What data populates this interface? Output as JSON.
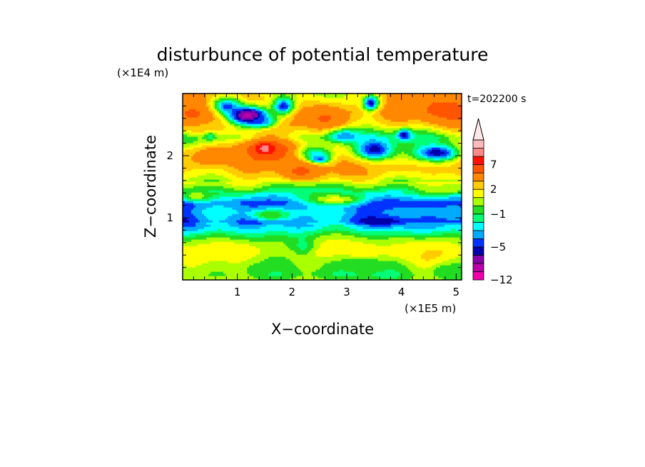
{
  "chart_data": {
    "type": "heatmap",
    "title": "disturbunce of potential temperature",
    "time_label": "t=202200 s",
    "xlabel": "X−coordinate",
    "ylabel": "Z−coordinate",
    "x_unit": "(×1E5 m)",
    "y_unit": "(×1E4 m)",
    "xlim": [
      0,
      5.1
    ],
    "ylim": [
      0,
      3.0
    ],
    "x_ticks": [
      1,
      2,
      3,
      4,
      5
    ],
    "y_ticks": [
      1,
      2
    ],
    "x_tick_labels": [
      "1",
      "2",
      "3",
      "4",
      "5"
    ],
    "y_tick_labels": [
      "1",
      "2"
    ],
    "colorbar": {
      "levels": [
        -12,
        -10,
        -8,
        -6,
        -5,
        -4,
        -3,
        -2,
        -1,
        0,
        1,
        2,
        3,
        5,
        7,
        9,
        11
      ],
      "colors": [
        "#ee00aa",
        "#bb00aa",
        "#8800aa",
        "#0000aa",
        "#0033ff",
        "#00aaff",
        "#00ffff",
        "#00ff77",
        "#22dd22",
        "#aaff00",
        "#ffff00",
        "#ffcc00",
        "#ff8800",
        "#ff5500",
        "#ff1100",
        "#ff8888",
        "#ffbbbb"
      ],
      "over_color": "#ffe8e8",
      "labels": [
        {
          "value": -12,
          "text": "−12"
        },
        {
          "value": -5,
          "text": "−5"
        },
        {
          "value": -1,
          "text": "−1"
        },
        {
          "value": 2,
          "text": "2"
        },
        {
          "value": 7,
          "text": "7"
        }
      ]
    },
    "band_structure": [
      {
        "z": 0.0,
        "value": 0.0
      },
      {
        "z": 0.1,
        "value": -0.6
      },
      {
        "z": 0.25,
        "value": 0.3
      },
      {
        "z": 0.45,
        "value": 1.5
      },
      {
        "z": 0.6,
        "value": 0.8
      },
      {
        "z": 0.7,
        "value": -0.4
      },
      {
        "z": 0.8,
        "value": -2.2
      },
      {
        "z": 0.95,
        "value": -4.0
      },
      {
        "z": 1.1,
        "value": -3.2
      },
      {
        "z": 1.25,
        "value": -4.6
      },
      {
        "z": 1.4,
        "value": -2.0
      },
      {
        "z": 1.55,
        "value": 0.6
      },
      {
        "z": 1.7,
        "value": 2.2
      },
      {
        "z": 1.9,
        "value": 3.2
      },
      {
        "z": 2.1,
        "value": 2.6
      },
      {
        "z": 2.3,
        "value": -0.6
      },
      {
        "z": 2.5,
        "value": 2.0
      },
      {
        "z": 2.7,
        "value": 3.5
      },
      {
        "z": 3.0,
        "value": 2.0
      }
    ],
    "features": [
      {
        "x": 1.2,
        "z": 2.65,
        "sx": 0.28,
        "sz": 0.11,
        "value": -10
      },
      {
        "x": 1.45,
        "z": 2.55,
        "sx": 0.2,
        "sz": 0.07,
        "value": -4
      },
      {
        "x": 0.8,
        "z": 2.8,
        "sx": 0.2,
        "sz": 0.1,
        "value": -5
      },
      {
        "x": 1.85,
        "z": 2.8,
        "sx": 0.14,
        "sz": 0.1,
        "value": -6
      },
      {
        "x": 3.45,
        "z": 2.85,
        "sx": 0.11,
        "sz": 0.09,
        "value": -7
      },
      {
        "x": 0.5,
        "z": 2.35,
        "sx": 0.07,
        "sz": 0.05,
        "value": -6
      },
      {
        "x": 2.9,
        "z": 2.35,
        "sx": 0.2,
        "sz": 0.08,
        "value": -6
      },
      {
        "x": 3.5,
        "z": 2.1,
        "sx": 0.26,
        "sz": 0.12,
        "value": -6
      },
      {
        "x": 4.05,
        "z": 2.35,
        "sx": 0.09,
        "sz": 0.06,
        "value": -6
      },
      {
        "x": 4.65,
        "z": 2.05,
        "sx": 0.3,
        "sz": 0.1,
        "value": -6
      },
      {
        "x": 2.4,
        "z": 2.05,
        "sx": 0.25,
        "sz": 0.09,
        "value": -3
      },
      {
        "x": 2.5,
        "z": 1.95,
        "sx": 0.13,
        "sz": 0.05,
        "value": -5
      },
      {
        "x": 1.55,
        "z": 2.1,
        "sx": 0.35,
        "sz": 0.14,
        "value": 6
      },
      {
        "x": 1.5,
        "z": 2.12,
        "sx": 0.11,
        "sz": 0.06,
        "value": 9
      },
      {
        "x": 0.55,
        "z": 2.0,
        "sx": 0.35,
        "sz": 0.13,
        "value": 4
      },
      {
        "x": 0.2,
        "z": 2.6,
        "sx": 0.25,
        "sz": 0.15,
        "value": 5
      },
      {
        "x": 0.45,
        "z": 2.45,
        "sx": 0.3,
        "sz": 0.1,
        "value": 2
      },
      {
        "x": 2.6,
        "z": 2.6,
        "sx": 0.35,
        "sz": 0.18,
        "value": 5
      },
      {
        "x": 2.15,
        "z": 1.75,
        "sx": 0.25,
        "sz": 0.09,
        "value": 5
      },
      {
        "x": 4.8,
        "z": 2.75,
        "sx": 0.35,
        "sz": 0.16,
        "value": 5
      },
      {
        "x": 3.9,
        "z": 2.7,
        "sx": 0.25,
        "sz": 0.14,
        "value": 3
      },
      {
        "x": 3.0,
        "z": 1.75,
        "sx": 0.2,
        "sz": 0.06,
        "value": 3
      },
      {
        "x": 4.0,
        "z": 1.8,
        "sx": 0.4,
        "sz": 0.08,
        "value": 2
      },
      {
        "x": 0.25,
        "z": 1.35,
        "sx": 0.2,
        "sz": 0.06,
        "value": 1
      },
      {
        "x": 4.7,
        "z": 1.45,
        "sx": 0.3,
        "sz": 0.05,
        "value": 1
      },
      {
        "x": 2.8,
        "z": 1.3,
        "sx": 0.4,
        "sz": 0.07,
        "value": 2
      },
      {
        "x": 3.7,
        "z": 0.95,
        "sx": 0.3,
        "sz": 0.05,
        "value": -5
      },
      {
        "x": 1.6,
        "z": 1.05,
        "sx": 0.25,
        "sz": 0.06,
        "value": 0.5
      },
      {
        "x": 3.3,
        "z": 0.25,
        "sx": 0.35,
        "sz": 0.07,
        "value": -1
      },
      {
        "x": 4.85,
        "z": 0.15,
        "sx": 0.2,
        "sz": 0.08,
        "value": -1
      },
      {
        "x": 1.5,
        "z": 0.2,
        "sx": 0.3,
        "sz": 0.06,
        "value": -0.5
      },
      {
        "x": 2.2,
        "z": 0.55,
        "sx": 0.15,
        "sz": 0.12,
        "value": -1.5
      },
      {
        "x": 1.0,
        "z": 0.5,
        "sx": 0.3,
        "sz": 0.07,
        "value": 1.5
      },
      {
        "x": 4.2,
        "z": 0.45,
        "sx": 0.3,
        "sz": 0.06,
        "value": 1.5
      }
    ]
  }
}
